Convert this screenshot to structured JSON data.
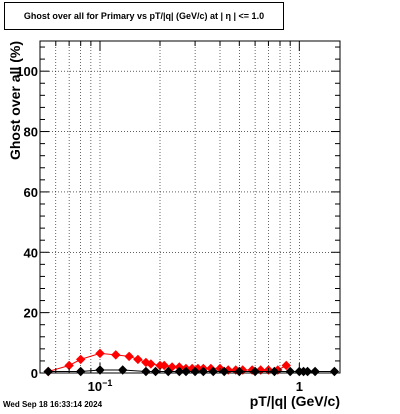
{
  "chart_data": {
    "type": "scatter",
    "title": "Ghost over all for Primary vs pT/|q| (GeV/c) at |  η  | <= 1.0",
    "xlabel": "pT/|q| (GeV/c)",
    "ylabel": "Ghost over all (%)",
    "xscale": "log",
    "xlim": [
      0.05,
      1.6
    ],
    "ylim": [
      0,
      110
    ],
    "x_tick_labels": [
      {
        "value": 0.1,
        "base": "10",
        "exp": "−1"
      },
      {
        "value": 1,
        "base": "1",
        "exp": ""
      }
    ],
    "y_tick_labels": [
      {
        "value": 0,
        "label": "0"
      },
      {
        "value": 20,
        "label": "20"
      },
      {
        "value": 40,
        "label": "40"
      },
      {
        "value": 60,
        "label": "60"
      },
      {
        "value": 80,
        "label": "80"
      },
      {
        "value": 100,
        "label": "100"
      }
    ],
    "grid": true,
    "series": [
      {
        "color": "#ff0000",
        "x": [
          0.055,
          0.07,
          0.08,
          0.1,
          0.12,
          0.14,
          0.155,
          0.17,
          0.18,
          0.2,
          0.21,
          0.23,
          0.25,
          0.27,
          0.29,
          0.31,
          0.33,
          0.36,
          0.4,
          0.44,
          0.48,
          0.52,
          0.58,
          0.64,
          0.7,
          0.78,
          0.86
        ],
        "y": [
          0.5,
          2.5,
          4.5,
          6.5,
          6,
          5.5,
          4.5,
          3.5,
          3,
          2.5,
          2.5,
          2,
          2,
          1.5,
          1.5,
          1.5,
          1.5,
          1.5,
          1.5,
          1,
          1,
          1,
          1,
          1,
          1,
          1,
          2.5
        ]
      },
      {
        "color": "#000000",
        "x": [
          0.055,
          0.08,
          0.1,
          0.13,
          0.17,
          0.19,
          0.22,
          0.25,
          0.27,
          0.3,
          0.33,
          0.37,
          0.42,
          0.5,
          0.6,
          0.75,
          0.9,
          1.0,
          1.05,
          1.1,
          1.2,
          1.5
        ],
        "y": [
          0.5,
          0.5,
          1,
          1,
          0.5,
          0.5,
          0.5,
          0.5,
          0.5,
          0.5,
          0.5,
          0.5,
          0.5,
          0.5,
          0.5,
          0.5,
          0.5,
          0.5,
          0.5,
          0.5,
          0.5,
          0.5
        ]
      }
    ]
  },
  "timestamp": "Wed Sep 18 16:33:14 2024"
}
